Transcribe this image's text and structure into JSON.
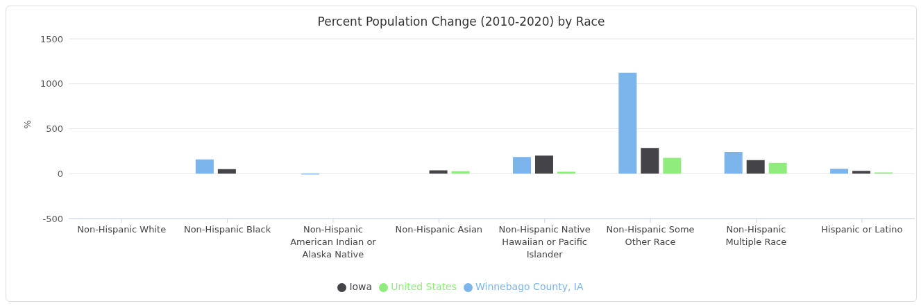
{
  "chart_data": {
    "type": "bar",
    "title": "Percent Population Change (2010-2020) by Race",
    "ylabel": "%",
    "categories": [
      "Non-Hispanic White",
      "Non-Hispanic Black",
      "Non-Hispanic American Indian or Alaska Native",
      "Non-Hispanic Asian",
      "Non-Hispanic Native Hawaiian or Pacific Islander",
      "Non-Hispanic Some Other Race",
      "Non-Hispanic Multiple Race",
      "Hispanic or Latino"
    ],
    "series": [
      {
        "name": "Winnebago County, IA",
        "color": "#7cb5ec",
        "values": [
          0,
          158,
          -10,
          0,
          186,
          1124,
          241,
          55
        ]
      },
      {
        "name": "Iowa",
        "color": "#434348",
        "values": [
          0,
          50,
          0,
          37,
          200,
          285,
          151,
          31
        ]
      },
      {
        "name": "United States",
        "color": "#90ed7d",
        "values": [
          0,
          0,
          0,
          27,
          21,
          175,
          120,
          14
        ]
      }
    ],
    "ylim": [
      -500,
      1500
    ],
    "yticks": [
      -500,
      0,
      500,
      1000,
      1500
    ],
    "grid": "y",
    "legend": "bottom"
  }
}
